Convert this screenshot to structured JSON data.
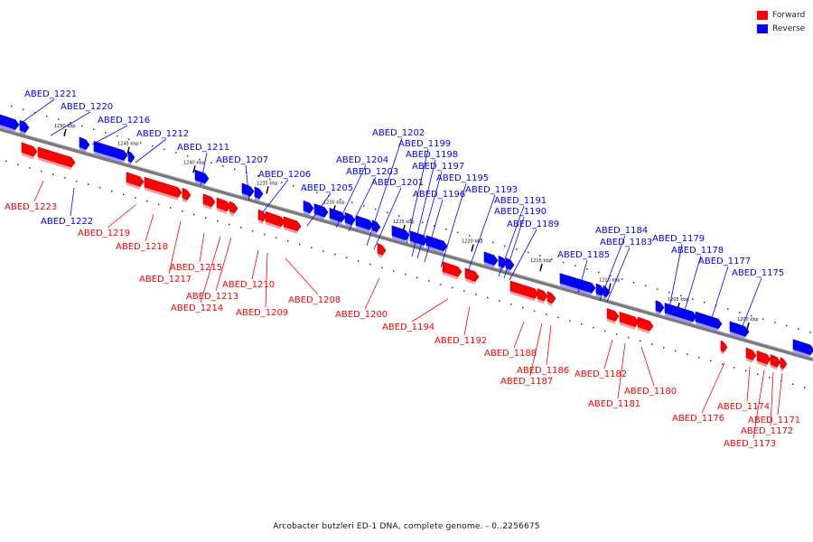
{
  "legend": {
    "forward_label": "Forward",
    "reverse_label": "Reverse",
    "forward_color": "#ff0000",
    "reverse_color": "#0000ff"
  },
  "footer_caption": "Arcobacter butzleri ED-1 DNA, complete genome. - 0..2256675",
  "scale_ticks": [
    "1250 kbp",
    "1245 kbp",
    "1240 kbp",
    "1235 kbp",
    "1230 kbp",
    "1225 kbp",
    "1220 kbp",
    "1215 kbp",
    "1210 kbp",
    "1205 kbp",
    "1200 kbp"
  ],
  "reverse_genes": [
    "ABED_1221",
    "ABED_1220",
    "ABED_1216",
    "ABED_1212",
    "ABED_1211",
    "ABED_1207",
    "ABED_1206",
    "ABED_1205",
    "ABED_1204",
    "ABED_1203",
    "ABED_1202",
    "ABED_1201",
    "ABED_1199",
    "ABED_1198",
    "ABED_1197",
    "ABED_1196",
    "ABED_1195",
    "ABED_1193",
    "ABED_1191",
    "ABED_1190",
    "ABED_1189",
    "ABED_1185",
    "ABED_1184",
    "ABED_1183",
    "ABED_1179",
    "ABED_1178",
    "ABED_1177",
    "ABED_1175",
    "ABED_1222"
  ],
  "forward_genes": [
    "ABED_1223",
    "ABED_1219",
    "ABED_1218",
    "ABED_1217",
    "ABED_1215",
    "ABED_1214",
    "ABED_1213",
    "ABED_1210",
    "ABED_1209",
    "ABED_1208",
    "ABED_1200",
    "ABED_1194",
    "ABED_1192",
    "ABED_1188",
    "ABED_1187",
    "ABED_1186",
    "ABED_1182",
    "ABED_1181",
    "ABED_1180",
    "ABED_1176",
    "ABED_1174",
    "ABED_1173",
    "ABED_1172",
    "ABED_1171"
  ]
}
